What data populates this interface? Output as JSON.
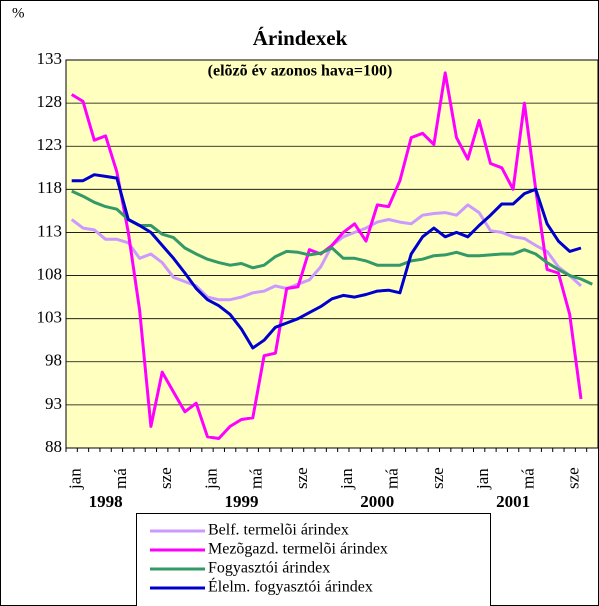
{
  "chart_data": {
    "type": "line",
    "title": "Árindexek",
    "subtitle": "(elõzõ év azonos hava=100)",
    "y_unit": "%",
    "categories": [
      "jan",
      null,
      null,
      null,
      "má",
      null,
      null,
      null,
      "sze",
      null,
      null,
      null,
      "jan",
      null,
      null,
      null,
      "má",
      null,
      null,
      null,
      "sze",
      null,
      null,
      null,
      "jan",
      null,
      null,
      null,
      "má",
      null,
      null,
      null,
      "sze",
      null,
      null,
      null,
      "jan",
      null,
      null,
      null,
      "má",
      null,
      null,
      null,
      "sze",
      null,
      null
    ],
    "x_group_labels": [
      "1998",
      "1999",
      "2000",
      "2001"
    ],
    "ylim": [
      88,
      133
    ],
    "yticks": [
      88,
      93,
      98,
      103,
      108,
      113,
      118,
      123,
      128,
      133
    ],
    "grid": true,
    "series": [
      {
        "name": "Belf. termelõi árindex",
        "color": "#cc99ff",
        "values": [
          114.5,
          113.5,
          113.3,
          112.2,
          112.2,
          111.8,
          110,
          110.5,
          109.5,
          107.8,
          107.3,
          106.8,
          105.5,
          105.2,
          105.2,
          105.5,
          106,
          106.2,
          106.8,
          106.5,
          107,
          107.5,
          109,
          111.5,
          112.5,
          113,
          113.5,
          114.2,
          114.5,
          114.2,
          114,
          115,
          115.2,
          115.3,
          115,
          116.2,
          115.3,
          113.2,
          113,
          112.5,
          112.3,
          111.5,
          110.8,
          109,
          108,
          106.8,
          null
        ]
      },
      {
        "name": "Mezõgazd. termelõi  árindex",
        "color": "#ff00ff",
        "values": [
          129,
          128.2,
          123.7,
          124.2,
          120,
          113,
          104,
          90.5,
          96.8,
          94.5,
          92.2,
          93.2,
          89.3,
          89.1,
          90.5,
          91.3,
          91.5,
          98.7,
          99,
          106.5,
          106.7,
          111,
          110.5,
          111.5,
          113,
          114,
          112,
          116.2,
          116,
          119,
          124,
          124.5,
          123.2,
          131.5,
          124,
          121.5,
          126,
          121,
          120.5,
          118,
          128,
          118,
          108.7,
          108.3,
          103.5,
          93.7,
          null
        ]
      },
      {
        "name": "Fogyasztói árindex",
        "color": "#339966",
        "values": [
          117.8,
          117.2,
          116.5,
          116,
          115.7,
          114.5,
          113.8,
          113.8,
          112.8,
          112.4,
          111.2,
          110.5,
          109.9,
          109.5,
          109.2,
          109.4,
          108.9,
          109.2,
          110.2,
          110.8,
          110.7,
          110.4,
          110.6,
          111.2,
          110,
          110,
          109.7,
          109.2,
          109.2,
          109.2,
          109.7,
          109.9,
          110.3,
          110.4,
          110.7,
          110.3,
          110.3,
          110.4,
          110.5,
          110.5,
          111,
          110.5,
          109.5,
          108.7,
          108,
          107.6,
          107
        ]
      },
      {
        "name": "Élelm. fogyasztói árindex",
        "color": "#0000cc",
        "values": [
          119,
          119,
          119.7,
          119.5,
          119.3,
          114.5,
          113.8,
          113,
          111.5,
          110,
          108.3,
          106.5,
          105.2,
          104.5,
          103.5,
          101.8,
          99.6,
          100.5,
          102,
          102.5,
          103,
          103.7,
          104.4,
          105.3,
          105.7,
          105.5,
          105.8,
          106.2,
          106.3,
          106,
          110.5,
          112.5,
          113.5,
          112.5,
          113,
          112.5,
          113.8,
          115,
          116.3,
          116.3,
          117.5,
          118,
          114,
          112,
          110.8,
          111.2,
          null
        ]
      }
    ]
  }
}
